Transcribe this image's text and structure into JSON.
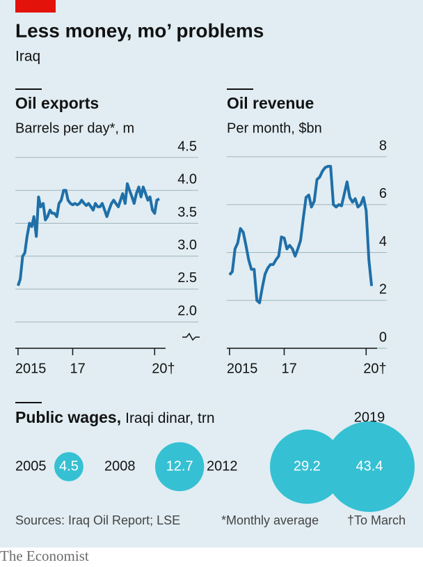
{
  "header": {
    "title": "Less money, mo’ problems",
    "subtitle": "Iraq"
  },
  "chart_data": [
    {
      "type": "line",
      "title": "Oil exports",
      "subtitle": "Barrels per day*, m",
      "color": "#1f6fa8",
      "x": [
        2015,
        2015.08,
        2015.17,
        2015.25,
        2015.33,
        2015.42,
        2015.5,
        2015.58,
        2015.67,
        2015.75,
        2015.83,
        2015.92,
        2016,
        2016.08,
        2016.17,
        2016.25,
        2016.33,
        2016.42,
        2016.5,
        2016.58,
        2016.67,
        2016.75,
        2016.83,
        2016.92,
        2017,
        2017.08,
        2017.17,
        2017.25,
        2017.33,
        2017.42,
        2017.5,
        2017.58,
        2017.67,
        2017.75,
        2017.83,
        2017.92,
        2018,
        2018.08,
        2018.17,
        2018.25,
        2018.33,
        2018.42,
        2018.5,
        2018.58,
        2018.67,
        2018.75,
        2018.83,
        2018.92,
        2019,
        2019.08,
        2019.17,
        2019.25,
        2019.33,
        2019.42,
        2019.5,
        2019.58,
        2019.67,
        2019.75,
        2019.83,
        2019.92,
        2020,
        2020.08,
        2020.17
      ],
      "values": [
        2.55,
        2.65,
        3.0,
        3.05,
        3.3,
        3.5,
        3.45,
        3.6,
        3.3,
        3.9,
        3.75,
        3.8,
        3.55,
        3.6,
        3.7,
        3.65,
        3.65,
        3.6,
        3.8,
        3.85,
        4.0,
        4.0,
        3.85,
        3.8,
        3.78,
        3.8,
        3.78,
        3.8,
        3.85,
        3.8,
        3.77,
        3.8,
        3.75,
        3.7,
        3.8,
        3.75,
        3.75,
        3.8,
        3.7,
        3.6,
        3.7,
        3.8,
        3.85,
        3.8,
        3.75,
        3.85,
        3.95,
        3.8,
        4.1,
        4.0,
        3.9,
        3.8,
        3.95,
        4.05,
        3.9,
        4.05,
        3.95,
        3.85,
        3.9,
        3.7,
        3.65,
        3.85,
        3.87
      ],
      "xlim": [
        2014.9,
        2020.4
      ],
      "xticks": [
        {
          "value": 2015,
          "label": "2015"
        },
        {
          "value": 2017,
          "label": "17"
        },
        {
          "value": 2020,
          "label": "20†"
        }
      ],
      "ylim": [
        1.6,
        4.5
      ],
      "yticks": [
        {
          "value": 2,
          "label": "2.0"
        },
        2.5,
        {
          "value": 3,
          "label": "3.0"
        },
        3.5,
        {
          "value": 4,
          "label": "4.0"
        },
        4.5
      ],
      "grid": true
    },
    {
      "type": "line",
      "title": "Oil revenue",
      "subtitle": "Per month, $bn",
      "color": "#1f6fa8",
      "x": [
        2015,
        2015.1,
        2015.2,
        2015.3,
        2015.4,
        2015.5,
        2015.6,
        2015.7,
        2015.8,
        2015.9,
        2016,
        2016.1,
        2016.2,
        2016.3,
        2016.4,
        2016.5,
        2016.6,
        2016.7,
        2016.8,
        2016.9,
        2017,
        2017.1,
        2017.2,
        2017.3,
        2017.4,
        2017.5,
        2017.6,
        2017.7,
        2017.8,
        2017.9,
        2018,
        2018.1,
        2018.2,
        2018.3,
        2018.4,
        2018.5,
        2018.6,
        2018.7,
        2018.8,
        2018.9,
        2019,
        2019.1,
        2019.2,
        2019.3,
        2019.4,
        2019.5,
        2019.6,
        2019.7,
        2019.8,
        2019.9,
        2020,
        2020.1,
        2020.2
      ],
      "values": [
        3.07,
        3.2,
        4.15,
        4.4,
        5.0,
        4.85,
        4.3,
        3.7,
        3.3,
        3.3,
        2.0,
        1.9,
        2.55,
        3.1,
        3.35,
        3.5,
        3.5,
        3.7,
        3.85,
        4.65,
        4.6,
        4.15,
        4.3,
        4.15,
        3.85,
        4.15,
        4.5,
        5.45,
        6.3,
        6.4,
        5.9,
        6.15,
        7.05,
        7.15,
        7.4,
        7.55,
        7.6,
        7.6,
        6.0,
        5.9,
        6.0,
        5.95,
        6.45,
        6.95,
        6.3,
        6.1,
        6.25,
        5.9,
        6.0,
        6.3,
        5.75,
        3.7,
        2.6
      ],
      "xlim": [
        2014.9,
        2020.4
      ],
      "xticks": [
        {
          "value": 2015,
          "label": "2015"
        },
        {
          "value": 2017,
          "label": "17"
        },
        {
          "value": 2020,
          "label": "20†"
        }
      ],
      "ylim": [
        0,
        8
      ],
      "yticks": [
        0,
        2,
        4,
        6,
        8
      ],
      "grid": true
    },
    {
      "type": "bubble",
      "title": "Public wages,",
      "subtitle": "Iraqi dinar, trn",
      "color": "#35c0d3",
      "categories": [
        "2005",
        "2008",
        "2012",
        "2019"
      ],
      "values": [
        4.5,
        12.7,
        29.2,
        43.4
      ]
    }
  ],
  "footer": {
    "sources": "Sources: Iraq Oil Report; LSE",
    "note": "*Monthly average",
    "note2": "†To March",
    "brand": "The Economist"
  }
}
